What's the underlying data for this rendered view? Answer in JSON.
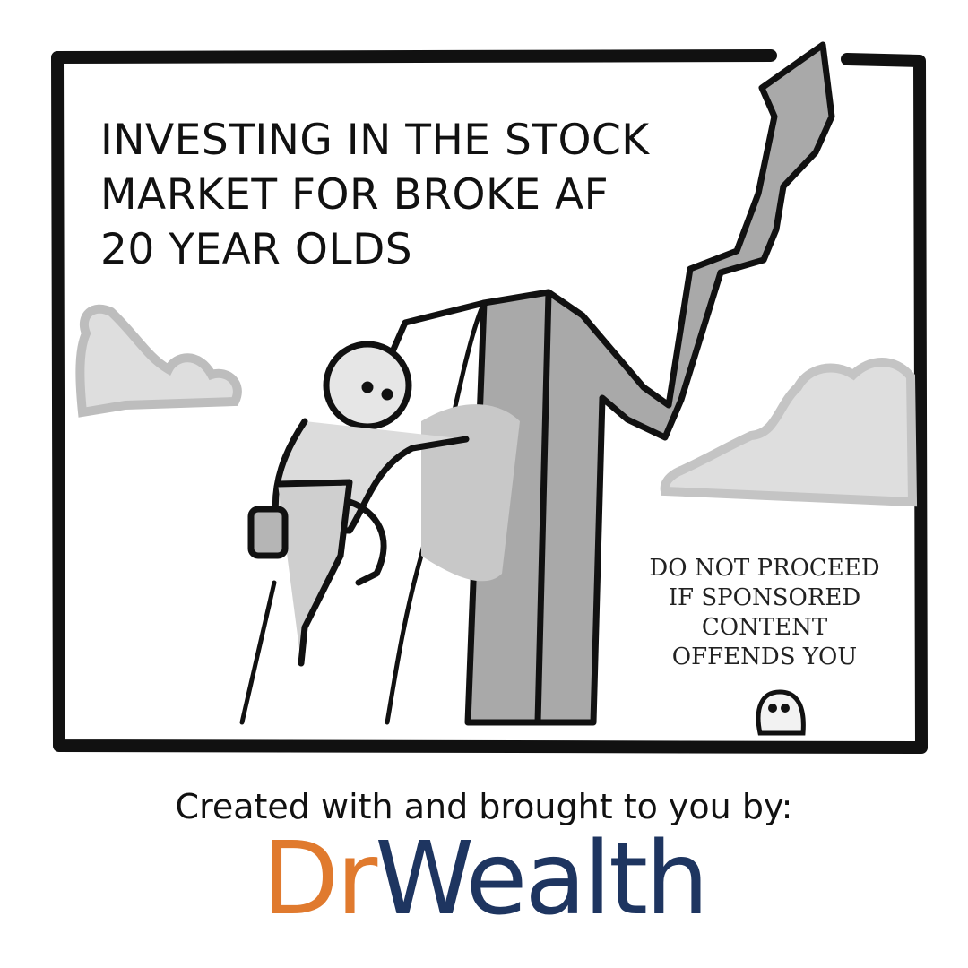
{
  "headline": {
    "line1": "INVESTING IN THE STOCK",
    "line2": "MARKET FOR BROKE AF",
    "line3": "20 YEAR OLDS"
  },
  "disclaimer": {
    "line1": "DO NOT PROCEED",
    "line2": "IF SPONSORED",
    "line3": "CONTENT",
    "line4": "OFFENDS YOU"
  },
  "credit_text": "Created with and brought to you by:",
  "logo": {
    "part1": "Dr",
    "part2": "Wealth",
    "colors": {
      "dr": "#e07a2e",
      "wealth": "#1e3560"
    }
  },
  "icons": [
    "stick-figure-climber",
    "rising-arrow",
    "clouds",
    "small-penguin"
  ]
}
